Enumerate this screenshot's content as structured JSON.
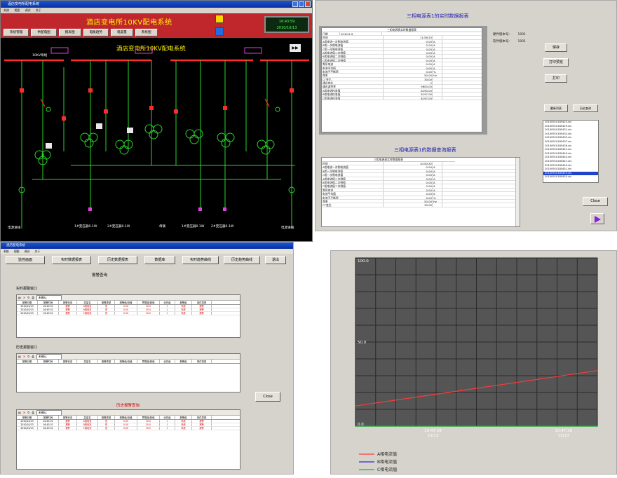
{
  "scada": {
    "window_title": "酒店变电所配电系统",
    "menu": [
      "系统",
      "视图",
      "调试",
      "关于"
    ],
    "header_title": "酒店变电所10KV配电系统",
    "clock_time": "16:43:59",
    "clock_date": "2010/10/13",
    "nav": [
      "系统管理",
      "供配电图",
      "报表图",
      "电能趋势",
      "电度量",
      "系统图"
    ],
    "diagram_title": "酒店变电所10KV配电系统",
    "forward": "▶▶",
    "bottom_labels": [
      "电源进线",
      "1#变压器0.1W",
      "2#变压器0.1W",
      "母联",
      "1#变压器0.1W",
      "2#变压器0.1W",
      "电源进线"
    ],
    "bus_label": "10KV母线"
  },
  "realtime": {
    "title": "三相电源表1的实时数据报表",
    "sheet_title": "三相电源表实时数据报表",
    "date_label": "日期",
    "date_value": "2010-9-9",
    "rows": [
      {
        "k": "时间",
        "v": "11:56:20",
        "u": ""
      },
      {
        "k": "A相电流一次侧电流值",
        "v": "0.00",
        "u": "A"
      },
      {
        "k": "B相一次侧电流值",
        "v": "0.00",
        "u": "A"
      },
      {
        "k": "C相一次侧电流值",
        "v": "0.00",
        "u": "A"
      },
      {
        "k": "A相电流值二次侧值",
        "v": "0.00",
        "u": "A"
      },
      {
        "k": "B相电流值二次侧值",
        "v": "0.00",
        "u": "A"
      },
      {
        "k": "C相电流值二次侧值",
        "v": "0.00",
        "u": "A"
      },
      {
        "k": "零序电流",
        "v": "0.00",
        "u": "A"
      },
      {
        "k": "电流平均值",
        "v": "0.00",
        "u": "A"
      },
      {
        "k": "电流不平衡率",
        "v": "0.00",
        "u": "%"
      },
      {
        "k": "频率",
        "v": "50.00",
        "u": "Hz"
      },
      {
        "k": "CT变比",
        "v": "30.00",
        "u": ""
      },
      {
        "k": "通讯地址",
        "v": "2",
        "u": ""
      },
      {
        "k": "通讯波特率",
        "v": "9600.00",
        "u": ""
      },
      {
        "k": "A相电流校准值",
        "v": "8190.00",
        "u": ""
      },
      {
        "k": "B相电流校准值",
        "v": "8197.00",
        "u": ""
      },
      {
        "k": "C相电流校准值",
        "v": "8197.00",
        "u": ""
      }
    ],
    "hw_label": "硬件版本号:",
    "hw_value": "1001",
    "sw_label": "软件版本号:",
    "sw_value": "1001",
    "buttons": {
      "save": "保存",
      "print_preview": "打印预览",
      "print": "打印"
    },
    "side_buttons": [
      "翻新列表",
      "历史查询"
    ],
    "files": [
      "20100910185423.xls",
      "20100910185429.xls",
      "20100910185431.xls",
      "20100910185433.xls",
      "20100910185435.xls",
      "20100910185437.xls",
      "20100910185439.xls",
      "20100910185441.xls",
      "20100910185443.xls",
      "20100910185445.xls",
      "20100910185447.xls",
      "20100910185449.xls",
      "20100910185451.xls",
      "20100910185453.xls",
      "20100910185455.xls"
    ],
    "selected_file_index": 13,
    "close": "Close",
    "query_title": "三相电源表1的数据查询报表",
    "query_sheet_title": "三相电源表实时数据报表",
    "query_rows": [
      {
        "k": "时间",
        "v": "10:50:32",
        "u": ""
      },
      {
        "k": "A相电流一次侧电流值",
        "v": "0.00",
        "u": "A"
      },
      {
        "k": "B相一次侧电流值",
        "v": "0.00",
        "u": "A"
      },
      {
        "k": "C相一次侧电流值",
        "v": "0.00",
        "u": "A"
      },
      {
        "k": "A相电流值二次侧值",
        "v": "0.00",
        "u": "A"
      },
      {
        "k": "B相电流值二次侧值",
        "v": "0.00",
        "u": "A"
      },
      {
        "k": "C相电流值二次侧值",
        "v": "0.00",
        "u": "A"
      },
      {
        "k": "零序电流",
        "v": "0.00",
        "u": "A"
      },
      {
        "k": "电流平均值",
        "v": "0.00",
        "u": "A"
      },
      {
        "k": "电流不平衡率",
        "v": "0.00",
        "u": "%"
      },
      {
        "k": "频率",
        "v": "50.00",
        "u": "Hz"
      },
      {
        "k": "CT变比",
        "v": "30.00",
        "u": ""
      }
    ]
  },
  "alarm": {
    "window_title": "酒店配电系统",
    "menu": [
      "系统",
      "视图",
      "调试",
      "关于"
    ],
    "tabs": [
      "监控画面",
      "实时数据报表",
      "历史数据报表",
      "数据库",
      "实时趋势曲线",
      "历史趋势曲线",
      "退出"
    ],
    "caption": "报警查询",
    "section1": "实时报警窗口",
    "section2": "历史报警窗口",
    "section3": "历史报警查询",
    "filter_option": "未确认",
    "columns": [
      "报警日期",
      "报警时间",
      "报警状态",
      "变量名",
      "报警类型",
      "报警值/旧值",
      "界限值/新值",
      "优先级",
      "报警组",
      "事件类型"
    ],
    "rows_grid1": [
      [
        "2010/10/13",
        "16:43:31",
        "报警",
        "A相电流",
        "低",
        "0.00",
        "30.0",
        "1",
        "系统",
        "报警"
      ],
      [
        "2010/10/13",
        "16:43:31",
        "报警",
        "B相电流",
        "低",
        "0.00",
        "30.0",
        "1",
        "系统",
        "报警"
      ],
      [
        "2010/10/13",
        "16:43:31",
        "报警",
        "C相电流",
        "低",
        "0.00",
        "30.0",
        "1",
        "系统",
        "报警"
      ]
    ],
    "rows_grid3": [
      [
        "2010/10/13",
        "16:43:31",
        "报警",
        "A相电流",
        "低",
        "0.00",
        "30.0",
        "1",
        "系统",
        "报警"
      ],
      [
        "2010/10/13",
        "16:43:31",
        "报警",
        "B相电流",
        "低",
        "0.00",
        "30.0",
        "1",
        "系统",
        "报警"
      ],
      [
        "2010/10/13",
        "16:43:31",
        "报警",
        "C相电流",
        "低",
        "0.00",
        "30.0",
        "1",
        "系统",
        "报警"
      ]
    ],
    "close": "Close"
  },
  "chart_data": {
    "type": "line",
    "ylim": [
      0,
      100
    ],
    "y_ticks": [
      "100.0",
      "50.0",
      "0.0"
    ],
    "x_ticks": [
      {
        "time": "10:47:28",
        "date": "10/13"
      },
      {
        "time": "10:47:38",
        "date": "10/13"
      }
    ],
    "series": [
      {
        "name": "A相电流值",
        "color": "#ff3b3b",
        "x": [
          0,
          1
        ],
        "y": [
          12,
          33
        ]
      },
      {
        "name": "B相电流值",
        "color": "#2b2bd6",
        "x": [
          0,
          1
        ],
        "y": [
          0,
          0
        ]
      },
      {
        "name": "C相电流值",
        "color": "#22b422",
        "x": [
          0,
          1
        ],
        "y": [
          0,
          0
        ]
      }
    ],
    "background": "#555555",
    "grid": true,
    "legend": "bottom-left"
  }
}
